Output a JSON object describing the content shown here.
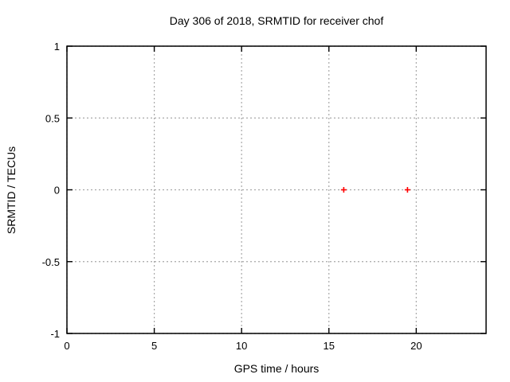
{
  "chart_data": {
    "type": "scatter",
    "title": "Day 306 of 2018, SRMTID for receiver chof",
    "xlabel": "GPS time / hours",
    "ylabel": "SRMTID / TECUs",
    "xlim": [
      0,
      24
    ],
    "ylim": [
      -1,
      1
    ],
    "xticks": [
      0,
      5,
      10,
      15,
      20
    ],
    "yticks": [
      -1,
      -0.5,
      0,
      0.5,
      1
    ],
    "grid": true,
    "grid_style": "dashed",
    "legend": "none",
    "series": [
      {
        "name": "SRMTID",
        "marker": "plus",
        "color": "#ff0000",
        "points": [
          {
            "x": 15.85,
            "y": 0
          },
          {
            "x": 19.5,
            "y": 0
          }
        ]
      }
    ],
    "colors": {
      "marker": "#ff0000",
      "grid": "#a8a8a8",
      "axis": "#000000",
      "background": "#ffffff",
      "text": "#000000"
    }
  }
}
